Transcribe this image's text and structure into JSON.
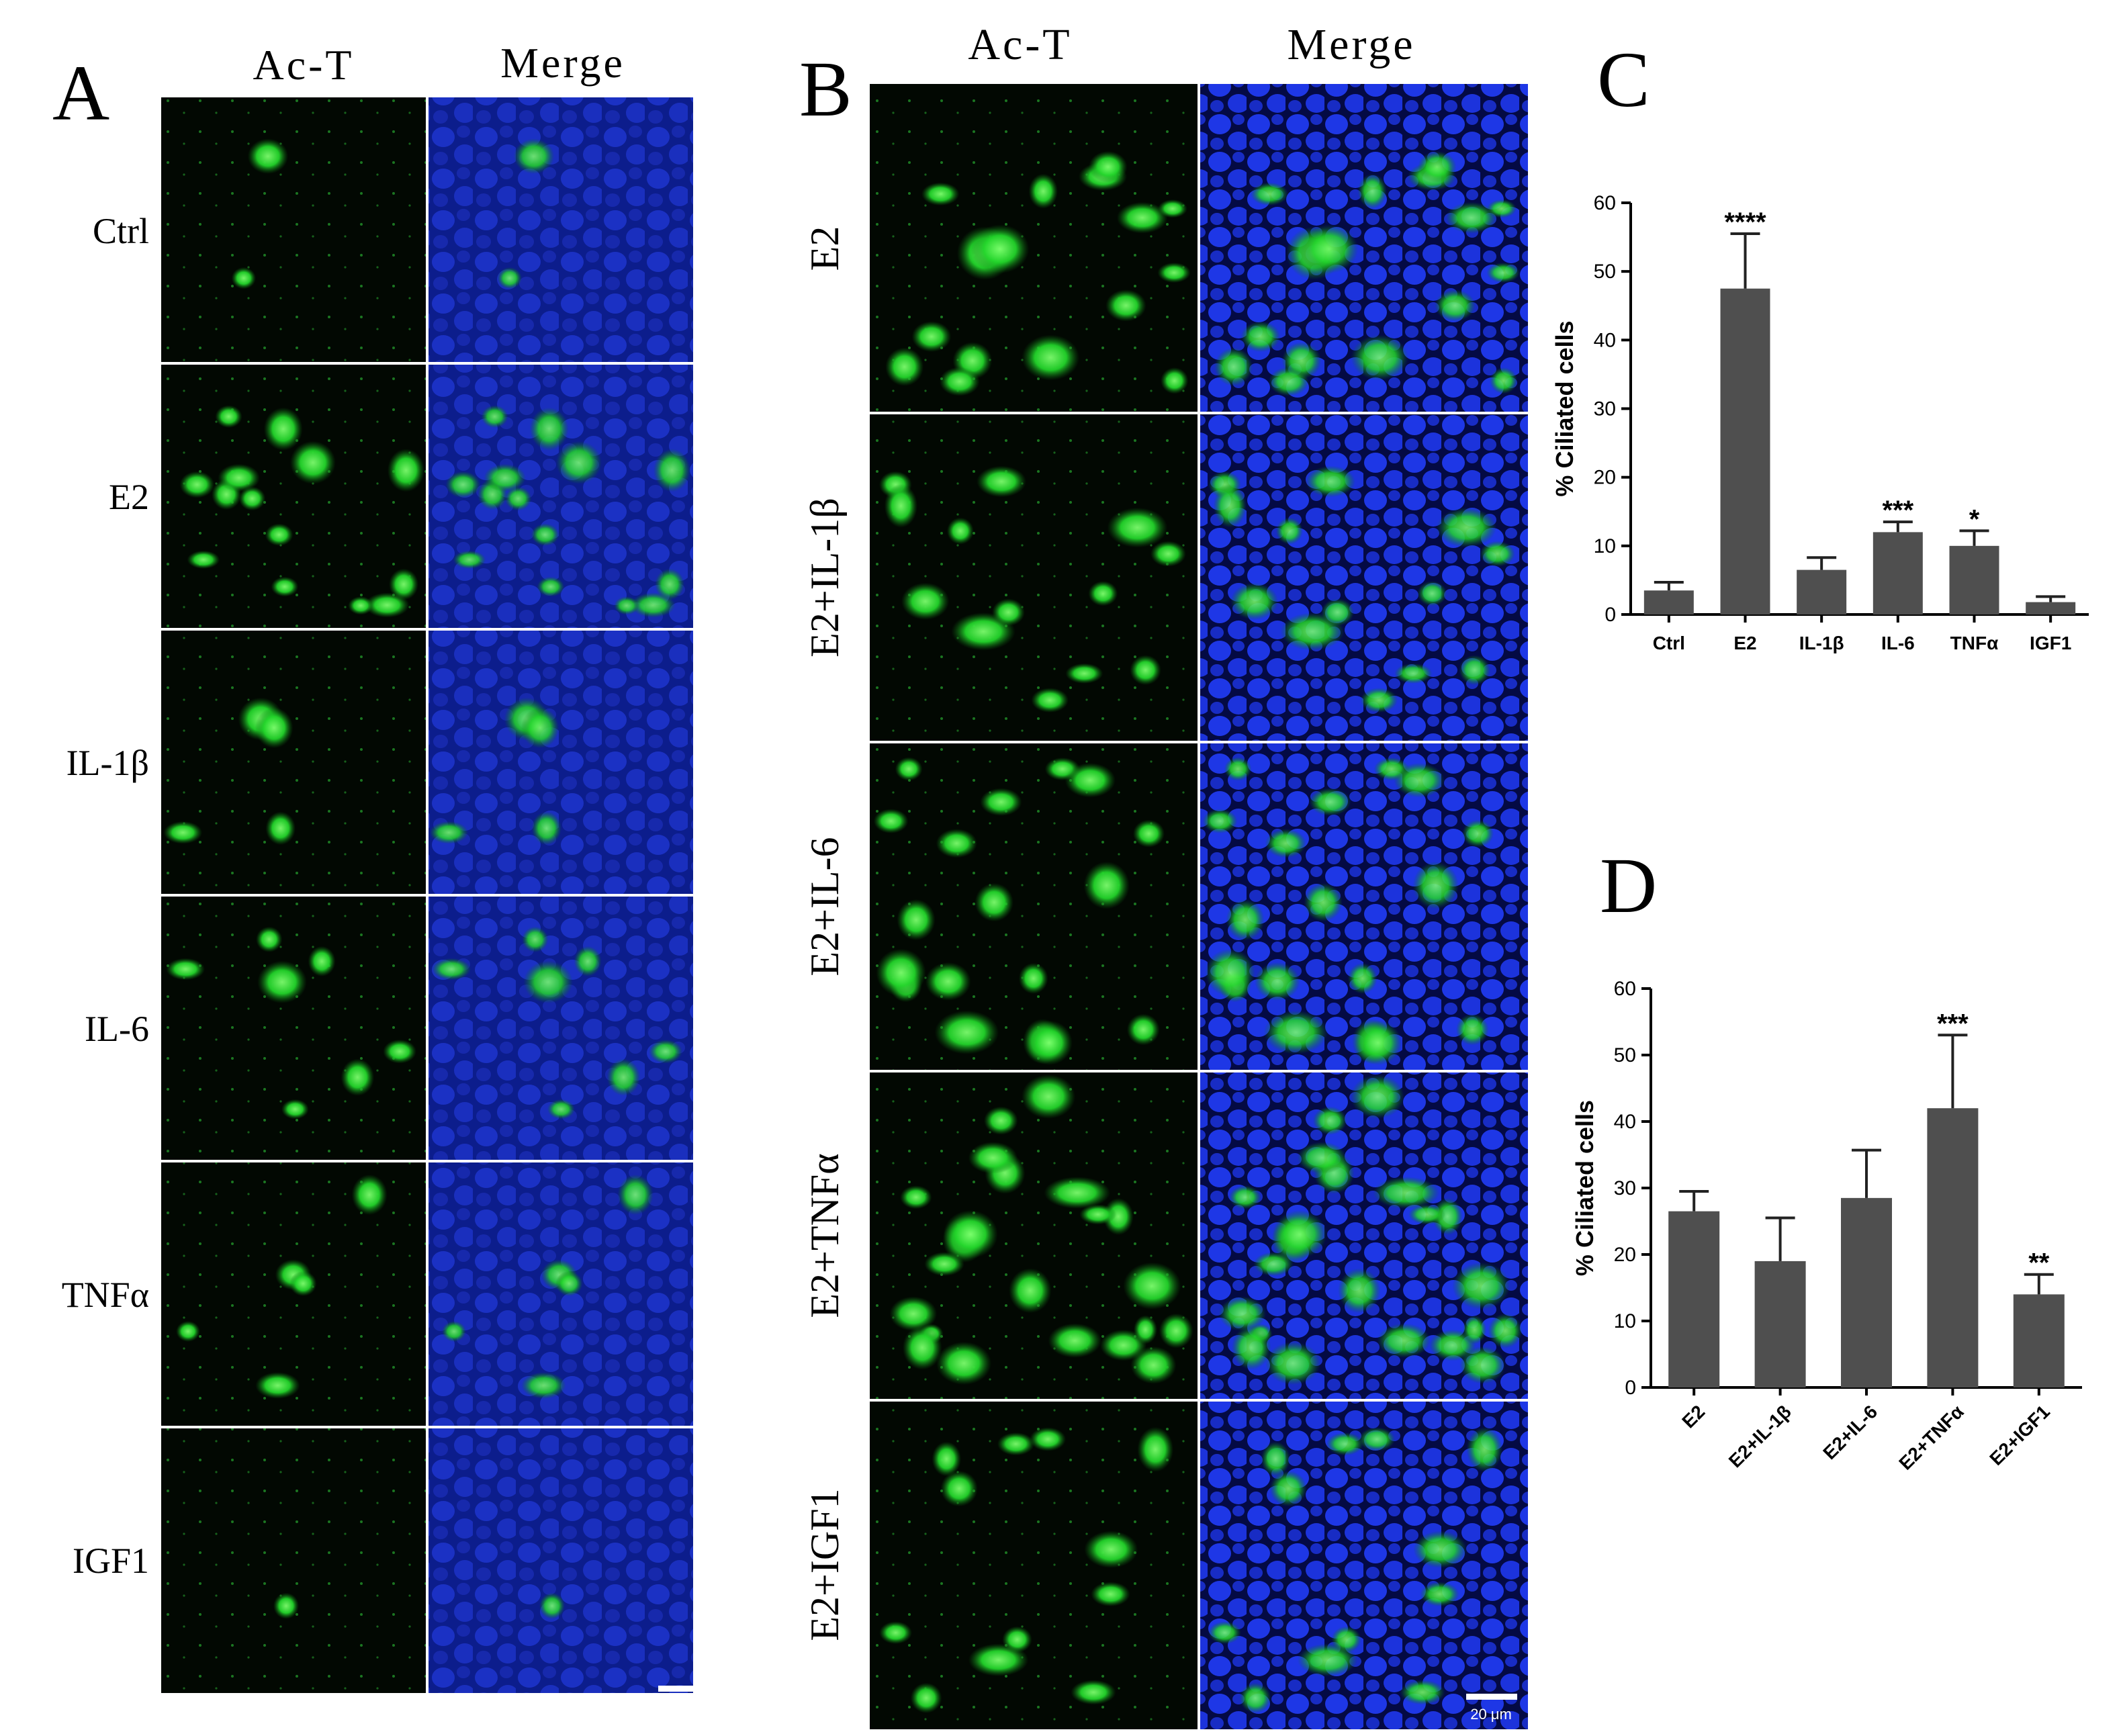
{
  "panels": {
    "a": {
      "letter": "A",
      "col_headers": [
        "Ac-T",
        "Merge"
      ],
      "rows": [
        "Ctrl",
        "E2",
        "IL-1β",
        "IL-6",
        "TNFα",
        "IGF1"
      ],
      "scale_bar": "20 μm"
    },
    "b": {
      "letter": "B",
      "col_headers": [
        "Ac-T",
        "Merge"
      ],
      "rows": [
        "E2",
        "E2+IL-1β",
        "E2+IL-6",
        "E2+TNFα",
        "E2+IGF1"
      ],
      "scale_bar": "20 μm"
    },
    "c": {
      "letter": "C"
    },
    "d": {
      "letter": "D"
    }
  },
  "colors": {
    "stain_green": "#22d42a",
    "nuclei_blue": "#1a2fd6",
    "background_dark": "#020802",
    "bar_fill": "#4f4f4f",
    "separator": "#ffffff"
  },
  "chart_data": [
    {
      "type": "bar",
      "panel": "C",
      "categories": [
        "Ctrl",
        "E2",
        "IL-1β",
        "IL-6",
        "TNFα",
        "IGF1"
      ],
      "values": [
        3.5,
        47.5,
        6.5,
        12,
        10,
        1.8
      ],
      "errors": [
        1.2,
        8,
        1.8,
        1.5,
        2.2,
        0.8
      ],
      "significance": [
        "",
        "****",
        "",
        "***",
        "*",
        ""
      ],
      "ylabel": "% Ciliated cells",
      "ylim": [
        0,
        60
      ],
      "yticks": [
        0,
        10,
        20,
        30,
        40,
        50,
        60
      ],
      "grid": false
    },
    {
      "type": "bar",
      "panel": "D",
      "categories": [
        "E2",
        "E2+IL-1β",
        "E2+IL-6",
        "E2+TNFα",
        "E2+IGF1"
      ],
      "values": [
        26.5,
        19,
        28.5,
        42,
        14
      ],
      "errors": [
        3,
        6.5,
        7.2,
        11,
        3
      ],
      "significance": [
        "",
        "",
        "",
        "***",
        "**"
      ],
      "ylabel": "% Ciliated cells",
      "ylim": [
        0,
        60
      ],
      "yticks": [
        0,
        10,
        20,
        30,
        40,
        50,
        60
      ],
      "grid": false
    }
  ]
}
